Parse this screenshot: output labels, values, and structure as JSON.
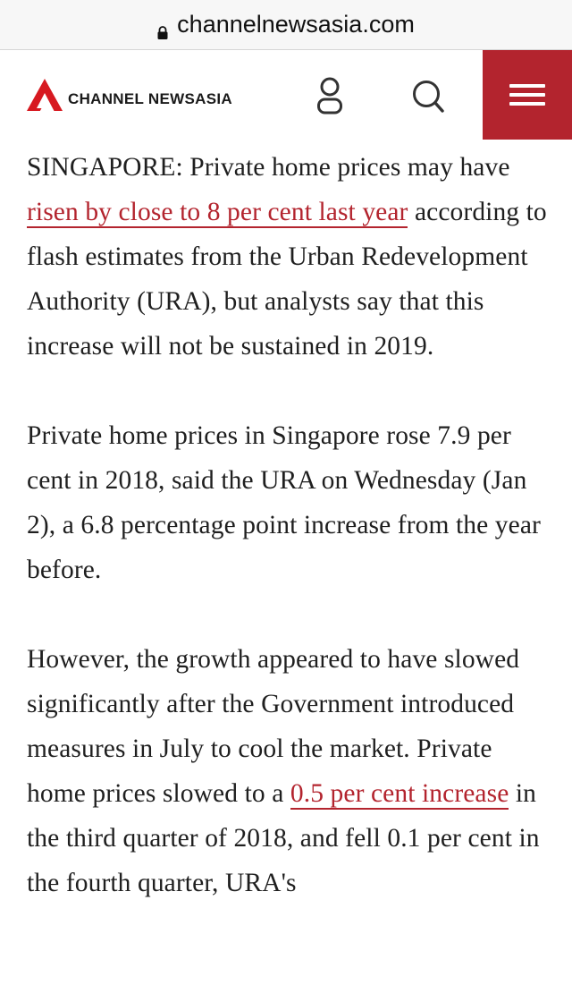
{
  "browser": {
    "url": "channelnewsasia.com"
  },
  "header": {
    "logo_text": "CHANNEL NEWSASIA",
    "brand_color": "#b3242e"
  },
  "article": {
    "p1": {
      "before": "SINGAPORE: Private home prices may have ",
      "link": "risen by close to 8 per cent last year",
      "after": " according to flash estimates from the Urban Redevelopment Authority (URA), but analysts say that this increase will not be sustained in 2019."
    },
    "p2": "Private home prices in Singapore rose 7.9 per cent in 2018, said the URA on Wednesday (Jan 2), a 6.8 percentage point increase from the year before.",
    "p3": {
      "before": "However, the growth appeared to have slowed significantly after the Government introduced measures in July to cool the market. Private home prices slowed to a ",
      "link": "0.5 per cent increase",
      "after": " in the third quarter of 2018, and fell 0.1 per cent in the fourth quarter, URA's"
    }
  }
}
